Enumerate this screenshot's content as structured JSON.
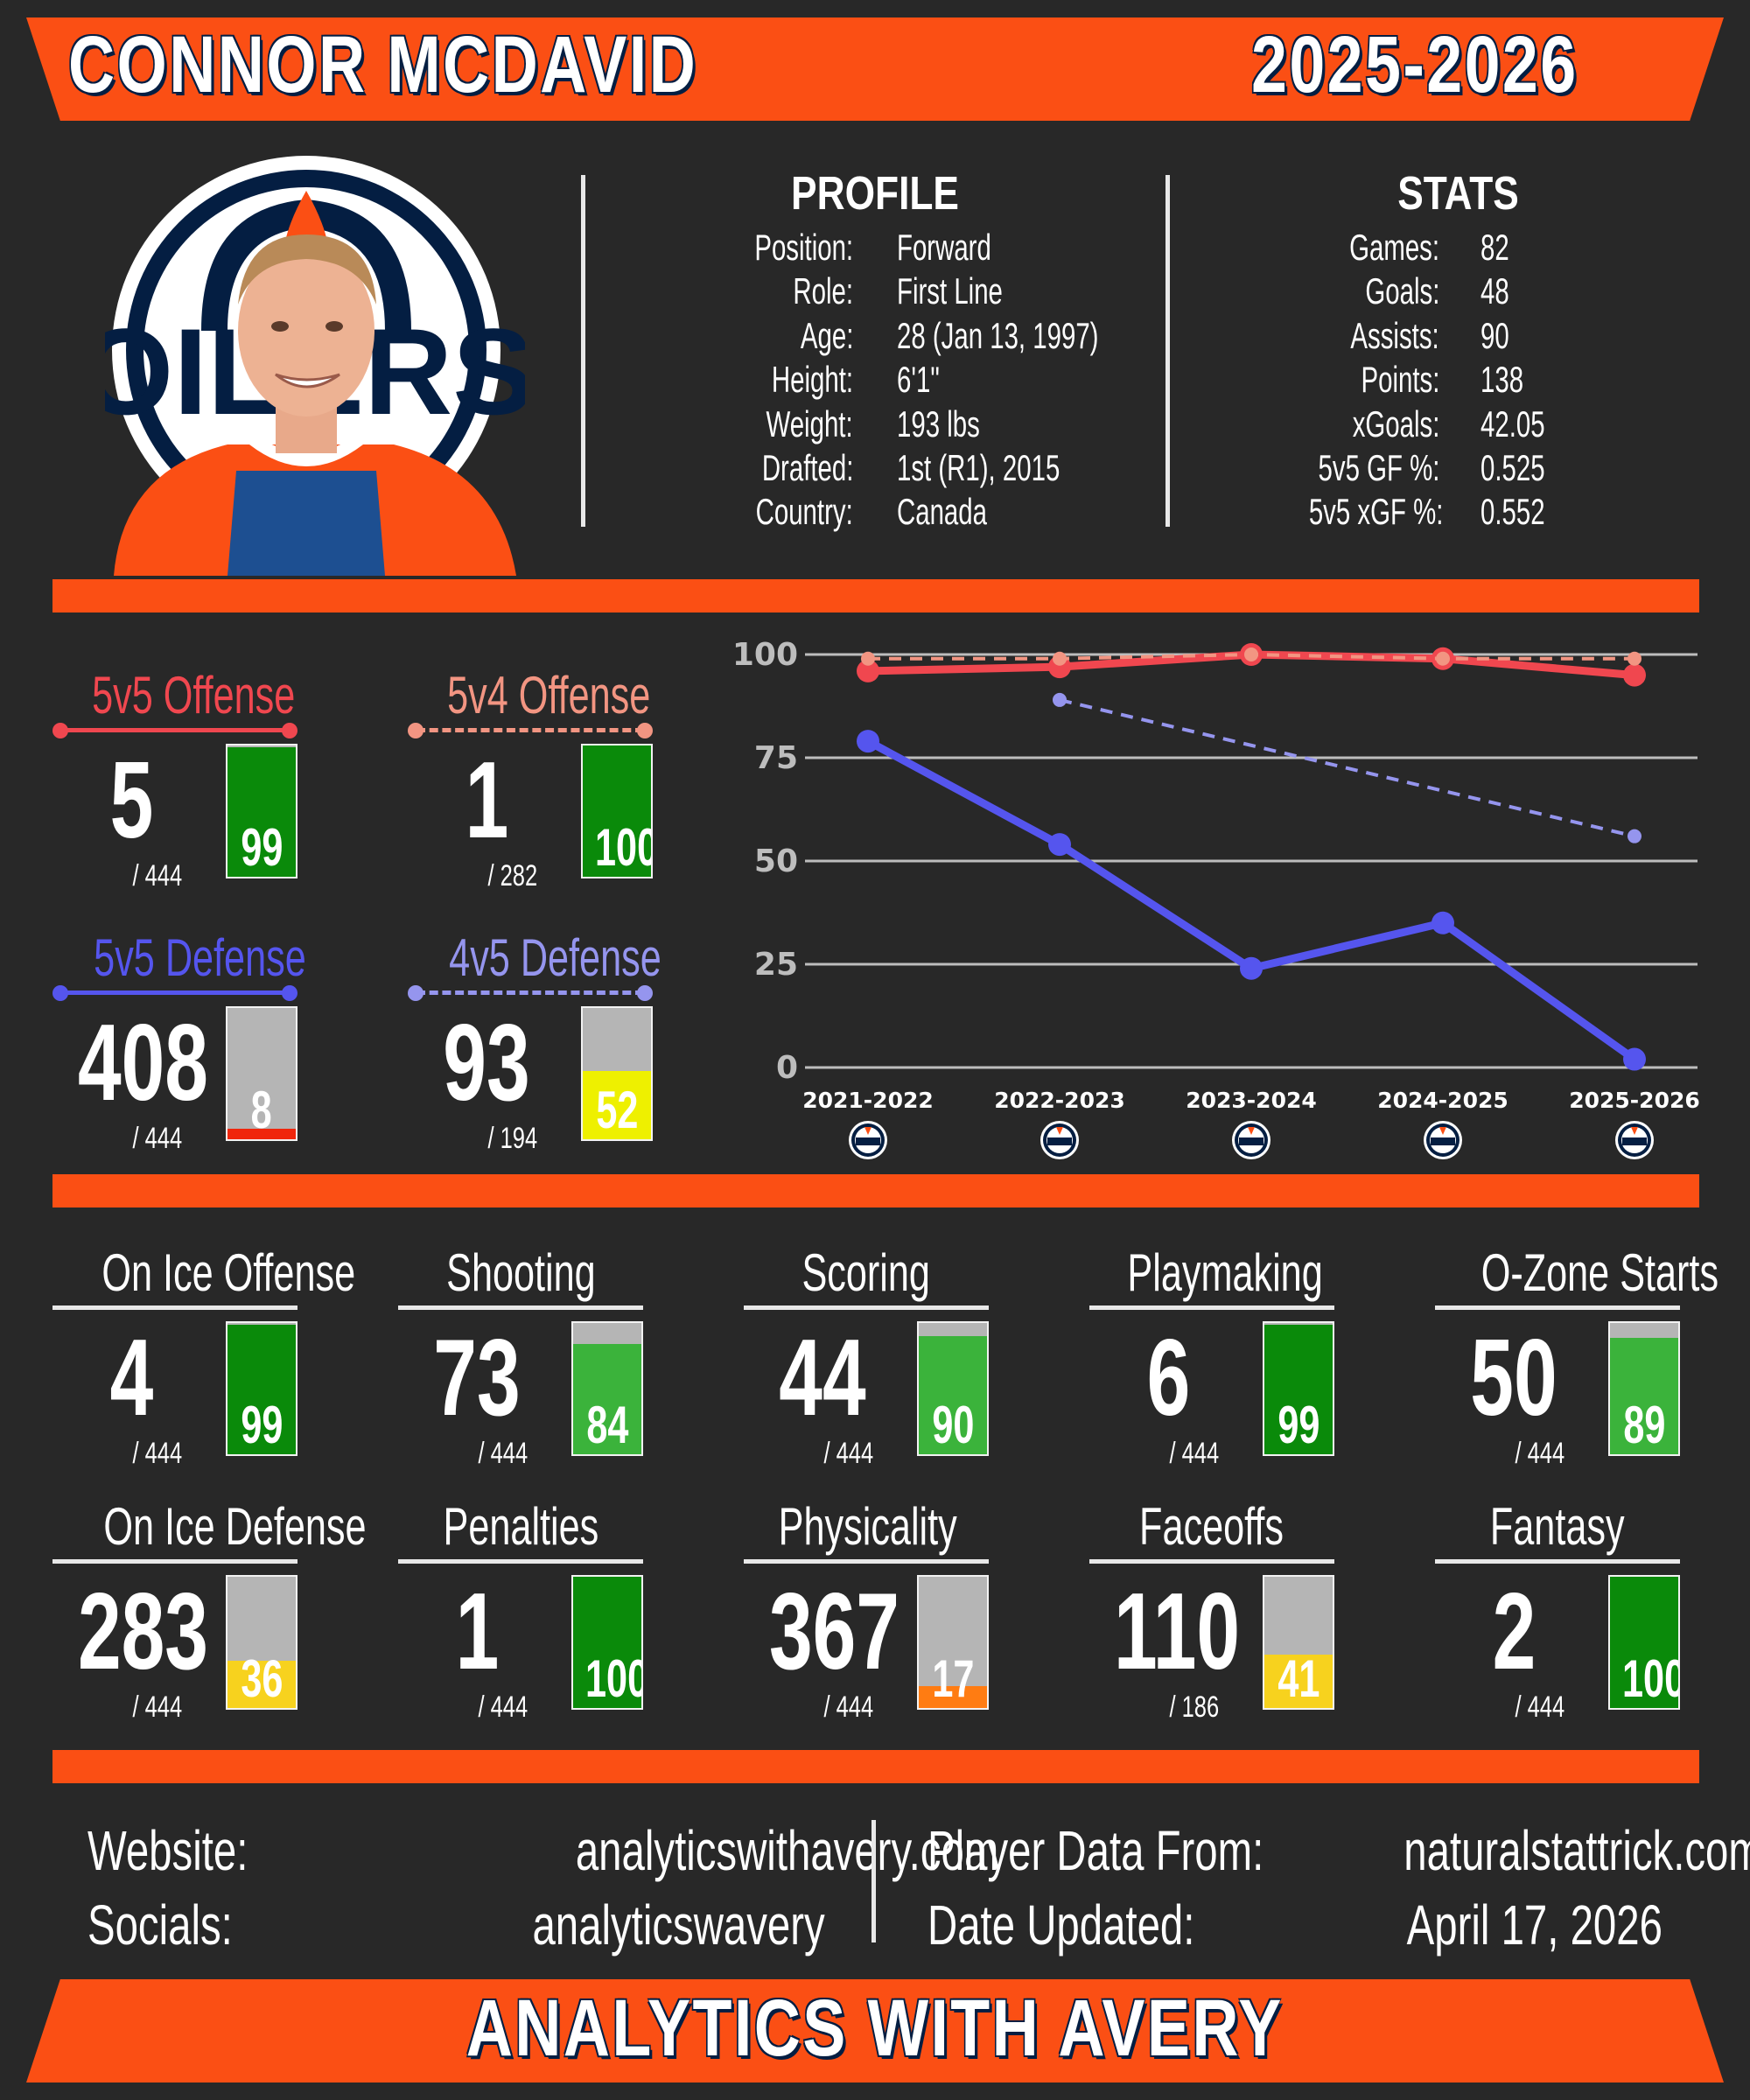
{
  "header": {
    "player_name": "CONNOR MCDAVID",
    "season": "2025-2026"
  },
  "profile": {
    "heading": "PROFILE",
    "rows": [
      {
        "k": "Position:",
        "v": "Forward"
      },
      {
        "k": "Role:",
        "v": "First Line"
      },
      {
        "k": "Age:",
        "v": "28 (Jan 13, 1997)"
      },
      {
        "k": "Height:",
        "v": "6'1\""
      },
      {
        "k": "Weight:",
        "v": "193 lbs"
      },
      {
        "k": "Drafted:",
        "v": "1st (R1), 2015"
      },
      {
        "k": "Country:",
        "v": "Canada"
      }
    ]
  },
  "stats": {
    "heading": "STATS",
    "rows": [
      {
        "k": "Games:",
        "v": "82"
      },
      {
        "k": "Goals:",
        "v": "48"
      },
      {
        "k": "Assists:",
        "v": "90"
      },
      {
        "k": "Points:",
        "v": "138"
      },
      {
        "k": "xGoals:",
        "v": "42.05"
      },
      {
        "k": "5v5 GF %:",
        "v": "0.525"
      },
      {
        "k": "5v5 xGF %:",
        "v": "0.552"
      }
    ]
  },
  "logo": {
    "text": "OILERS"
  },
  "chart_tiles": [
    {
      "label": "5v5 Offense",
      "rank": "5",
      "of": "/ 444",
      "pct": 99,
      "color": "#f0474f",
      "dashed": false
    },
    {
      "label": "5v4 Offense",
      "rank": "1",
      "of": "/ 282",
      "pct": 100,
      "color": "#f29582",
      "dashed": true
    },
    {
      "label": "5v5 Defense",
      "rank": "408",
      "of": "/ 444",
      "pct": 8,
      "color": "#5555ee",
      "dashed": false
    },
    {
      "label": "4v5 Defense",
      "rank": "93",
      "of": "/ 194",
      "pct": 52,
      "color": "#9595ee",
      "dashed": true
    }
  ],
  "chart_data": {
    "type": "line",
    "categories": [
      "2021-2022",
      "2022-2023",
      "2023-2024",
      "2024-2025",
      "2025-2026"
    ],
    "yticks": [
      "0",
      "25",
      "50",
      "75",
      "100"
    ],
    "ylim": [
      0,
      100
    ],
    "grid": true,
    "series": [
      {
        "values": [
          96,
          97,
          100,
          99,
          95
        ],
        "color": "#f0474f",
        "dashed": false
      },
      {
        "values": [
          99,
          99,
          100,
          99,
          99
        ],
        "color": "#f29582",
        "dashed": true
      },
      {
        "values": [
          79,
          54,
          24,
          35,
          2
        ],
        "color": "#5555ee",
        "dashed": false
      },
      {
        "values": [
          null,
          89,
          null,
          null,
          56
        ],
        "color": "#9595ee",
        "dashed": true
      }
    ]
  },
  "tiles": [
    {
      "label": "On Ice Offense",
      "rank": "4",
      "of": "/ 444",
      "pct": 99
    },
    {
      "label": "Shooting",
      "rank": "73",
      "of": "/ 444",
      "pct": 84
    },
    {
      "label": "Scoring",
      "rank": "44",
      "of": "/ 444",
      "pct": 90
    },
    {
      "label": "Playmaking",
      "rank": "6",
      "of": "/ 444",
      "pct": 99
    },
    {
      "label": "O-Zone Starts",
      "rank": "50",
      "of": "/ 444",
      "pct": 89
    },
    {
      "label": "On Ice Defense",
      "rank": "283",
      "of": "/ 444",
      "pct": 36
    },
    {
      "label": "Penalties",
      "rank": "1",
      "of": "/ 444",
      "pct": 100
    },
    {
      "label": "Physicality",
      "rank": "367",
      "of": "/ 444",
      "pct": 17
    },
    {
      "label": "Faceoffs",
      "rank": "110",
      "of": "/ 186",
      "pct": 41
    },
    {
      "label": "Fantasy",
      "rank": "2",
      "of": "/ 444",
      "pct": 100
    }
  ],
  "footer": {
    "website_label": "Website:",
    "website_value": "analyticswithavery.com",
    "socials_label": "Socials:",
    "socials_value": "analyticswavery",
    "source_label": "Player Data From:",
    "source_value": "naturalstattrick.com",
    "updated_label": "Date Updated:",
    "updated_value": "April 17, 2026",
    "brand": "ANALYTICS WITH AVERY"
  },
  "colors": {
    "orange": "#fb4f14",
    "navy": "#041e42",
    "background": "#282828"
  }
}
